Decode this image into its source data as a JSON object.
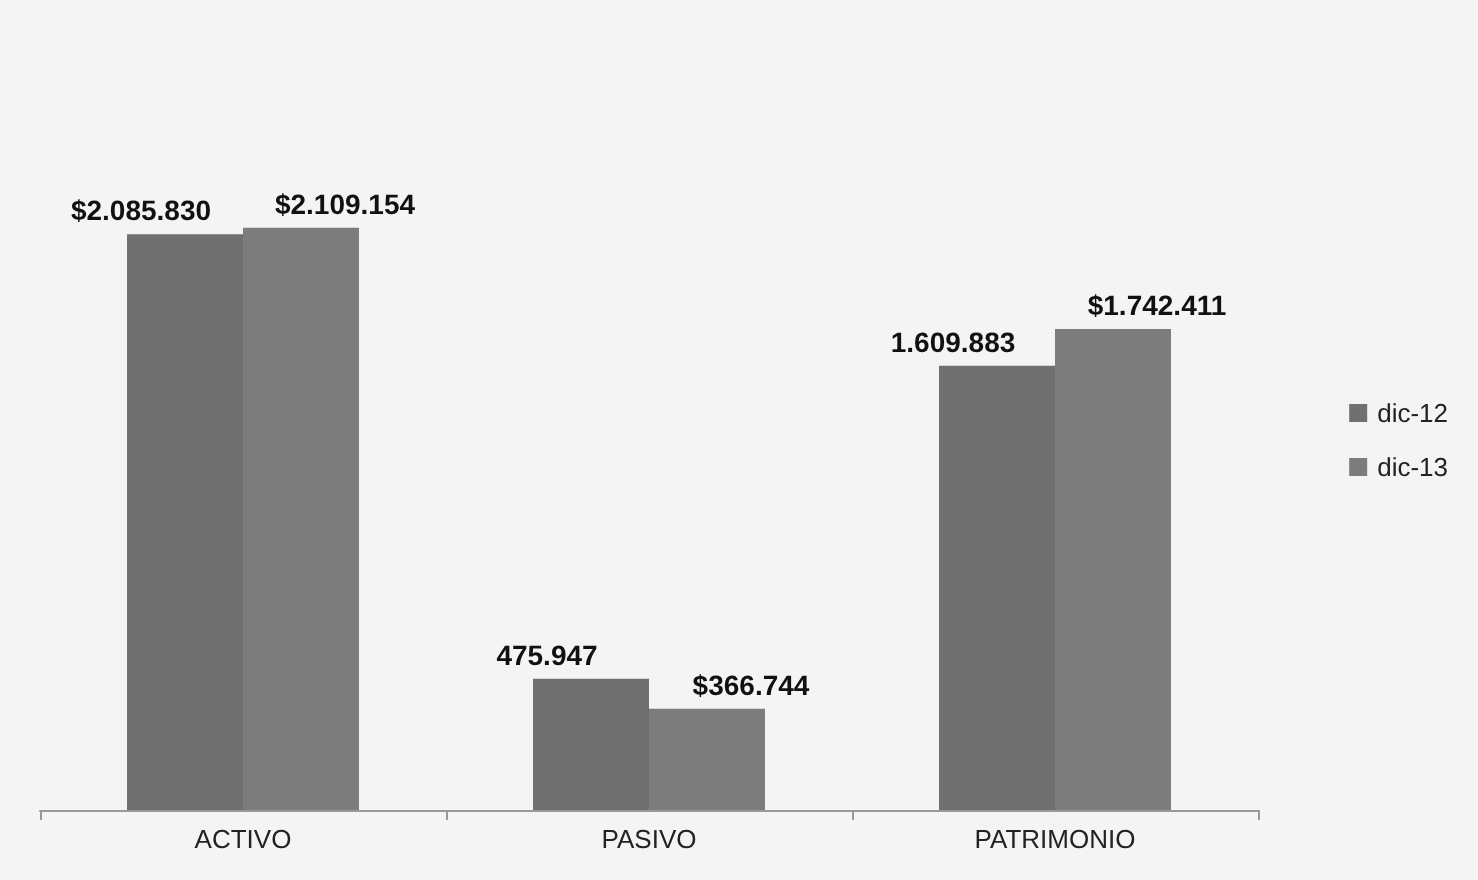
{
  "chart_data": {
    "type": "bar",
    "categories": [
      "ACTIVO",
      "PASIVO",
      "PATRIMONIO"
    ],
    "series": [
      {
        "name": "dic-12",
        "color": "#707070",
        "values": [
          2085830,
          475947,
          1609883
        ],
        "value_labels": [
          "$2.085.830",
          "475.947",
          "1.609.883"
        ]
      },
      {
        "name": "dic-13",
        "color": "#7c7c7c",
        "values": [
          2109154,
          366744,
          1742411
        ],
        "value_labels": [
          "$2.109.154",
          "$366.744",
          "$1.742.411"
        ]
      }
    ],
    "legend": "right"
  }
}
